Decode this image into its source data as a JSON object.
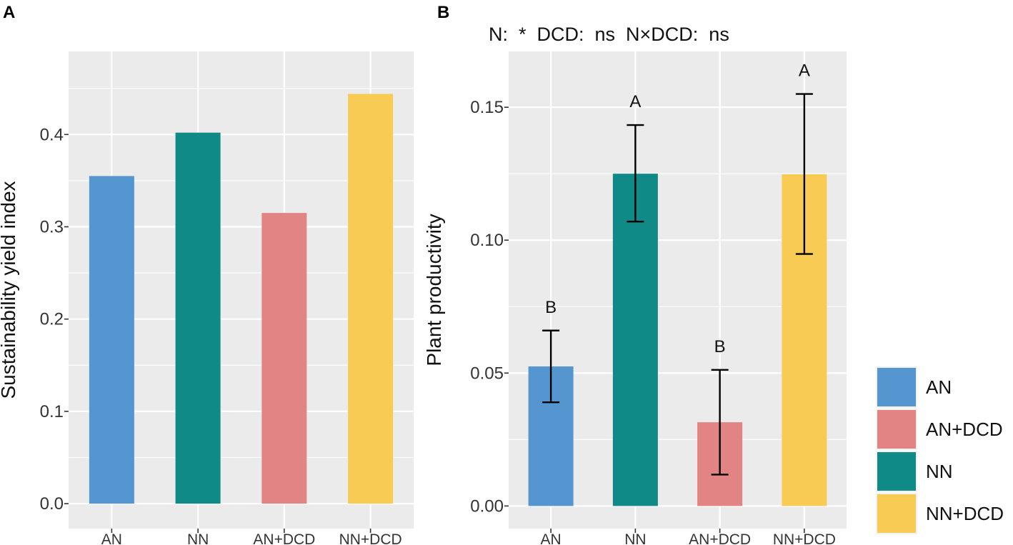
{
  "chart_data": [
    {
      "panel_label": "A",
      "type": "bar",
      "title": "",
      "xlabel": "",
      "ylabel": "Sustainability yield index",
      "categories": [
        "AN",
        "NN",
        "AN+DCD",
        "NN+DCD"
      ],
      "values": [
        0.355,
        0.402,
        0.315,
        0.444
      ],
      "colors": [
        "#5596D0",
        "#108A87",
        "#E28484",
        "#F8CB55"
      ],
      "ylim": [
        -0.027,
        0.49
      ],
      "yticks": [
        0.0,
        0.1,
        0.2,
        0.3,
        0.4
      ],
      "ytick_labels": [
        "0.0",
        "0.1",
        "0.2",
        "0.3",
        "0.4"
      ],
      "grid": true
    },
    {
      "panel_label": "B",
      "type": "bar",
      "title": "",
      "stats_text": "N:  *  DCD:  ns  N×DCD:  ns",
      "xlabel": "",
      "ylabel": "Plant productivity",
      "categories": [
        "AN",
        "NN",
        "AN+DCD",
        "NN+DCD"
      ],
      "values": [
        0.0525,
        0.125,
        0.0315,
        0.1248
      ],
      "error_low": [
        0.039,
        0.107,
        0.0118,
        0.0948
      ],
      "error_high": [
        0.066,
        0.1433,
        0.0512,
        0.155
      ],
      "letters": [
        "B",
        "A",
        "B",
        "A"
      ],
      "colors": [
        "#5596D0",
        "#108A87",
        "#E28484",
        "#F8CB55"
      ],
      "ylim": [
        -0.0085,
        0.171
      ],
      "yticks": [
        0.0,
        0.05,
        0.1,
        0.15
      ],
      "ytick_labels": [
        "0.00",
        "0.05",
        "0.10",
        "0.15"
      ],
      "grid": true
    }
  ],
  "legend": {
    "placement": "right",
    "items": [
      {
        "label": "AN",
        "color": "#5596D0"
      },
      {
        "label": "AN+DCD",
        "color": "#E28484"
      },
      {
        "label": "NN",
        "color": "#108A87"
      },
      {
        "label": "NN+DCD",
        "color": "#F8CB55"
      }
    ]
  }
}
